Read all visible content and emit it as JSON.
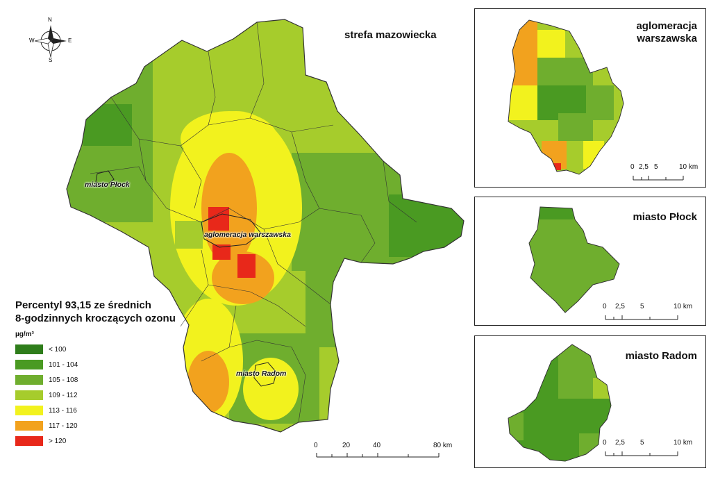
{
  "main": {
    "title": "strefa mazowiecka",
    "labels": {
      "plock": "miasto Płock",
      "warszawa": "aglomeracja warszawska",
      "radom": "miasto Radom"
    },
    "scale": {
      "ticks": [
        "0",
        "20",
        "40",
        "80 km"
      ]
    }
  },
  "compass": {
    "n": "N",
    "s": "S",
    "e": "E",
    "w": "W"
  },
  "legend": {
    "title_line1": "Percentyl 93,15 ze średnich",
    "title_line2": "8-godzinnych kroczących ozonu",
    "unit": "µg/m³",
    "classes": [
      {
        "label": "< 100",
        "color": "#2e7d1a"
      },
      {
        "label": "101 - 104",
        "color": "#4a9a22"
      },
      {
        "label": "105 - 108",
        "color": "#6fae2e"
      },
      {
        "label": "109 - 112",
        "color": "#a6cc2c"
      },
      {
        "label": "113 - 116",
        "color": "#f2f21e"
      },
      {
        "label": "117 - 120",
        "color": "#f2a21e"
      },
      {
        "label": "> 120",
        "color": "#e8281a"
      }
    ]
  },
  "insets": {
    "warszawa": {
      "title_line1": "aglomeracja",
      "title_line2": "warszawska",
      "scale": [
        "0",
        "2,5",
        "5",
        "10 km"
      ]
    },
    "plock": {
      "title": "miasto Płock",
      "scale": [
        "0",
        "2,5",
        "5",
        "10 km"
      ]
    },
    "radom": {
      "title": "miasto Radom",
      "scale": [
        "0",
        "2,5",
        "5",
        "10 km"
      ]
    }
  }
}
